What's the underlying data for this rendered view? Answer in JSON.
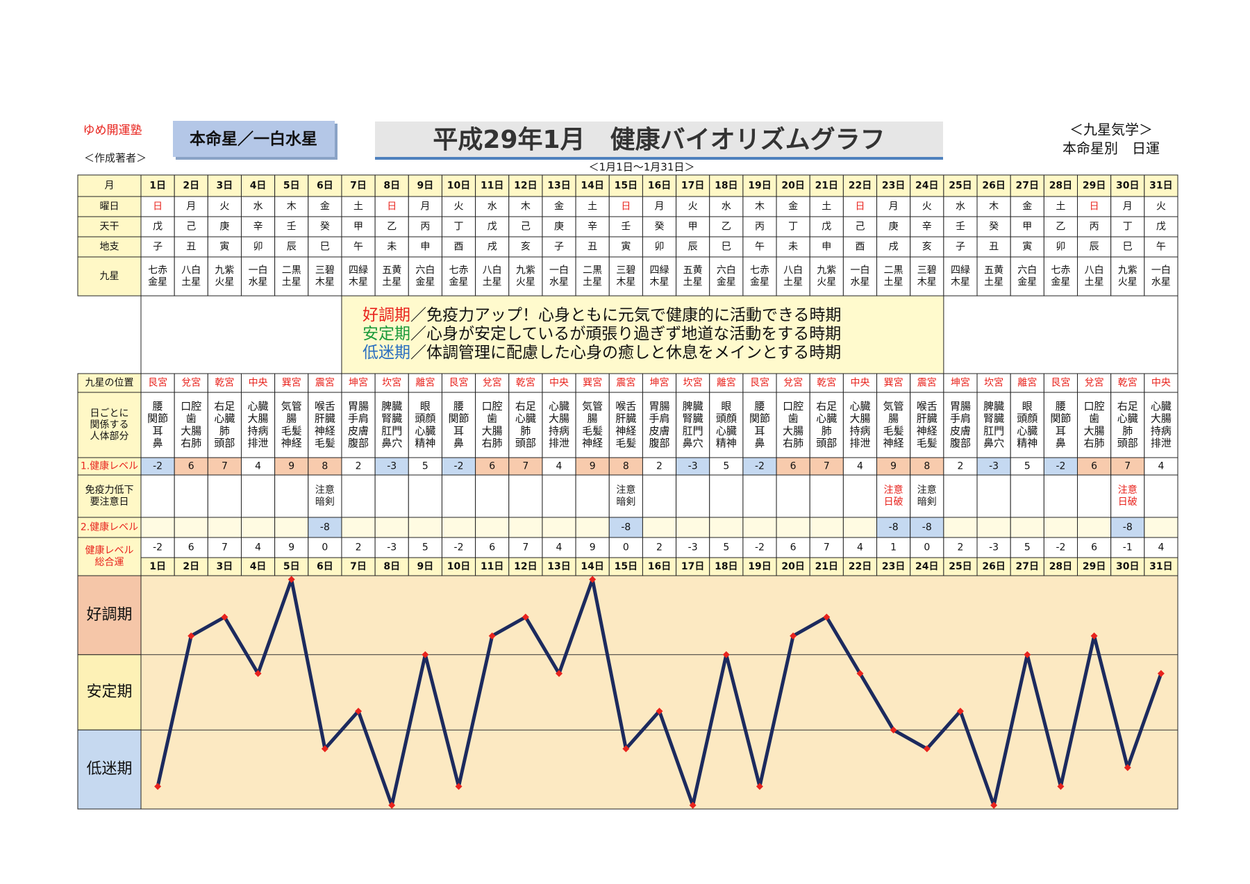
{
  "header": {
    "brand": "ゆめ開運塾",
    "author": "＜作成著者＞",
    "star": "本命星／一白水星",
    "title": "平成29年1月　健康バイオリズムグラフ",
    "range": "＜1月1日～1月31日＞",
    "school": "＜九星気学＞",
    "subtitle": "本命星別　日運"
  },
  "row_labels": {
    "day": [
      "月"
    ],
    "weekday": [
      "曜日"
    ],
    "kan": [
      "天干"
    ],
    "shi": [
      "地支"
    ],
    "star": [
      "九星"
    ],
    "position": [
      "九星の位置"
    ],
    "body": [
      "日ごとに",
      "関係する",
      "人体部分"
    ],
    "level1": [
      "1.健康レベル"
    ],
    "caution": [
      "免疫力低下",
      "要注意日"
    ],
    "level2": [
      "2.健康レベル"
    ],
    "total": [
      "健康レベル",
      "総合運"
    ]
  },
  "legend": [
    {
      "term": "好調期",
      "text": "／免疫力アップ！心身ともに元気で健康的に活動できる時期",
      "color": "#e8231d"
    },
    {
      "term": "安定期",
      "text": "／心身が安定しているが頑張り過ぎず地道な活動をする時期",
      "color": "#1a9a3a"
    },
    {
      "term": "低迷期",
      "text": "／体調管理に配慮した心身の癒しと休息をメインとする時期",
      "color": "#2a6fc0"
    }
  ],
  "days": [
    {
      "day": "1日",
      "weekday": "日",
      "kan": "戊",
      "shi": "子",
      "star": [
        "七赤",
        "金星"
      ],
      "position": "艮宮",
      "body": [
        "腰",
        "関節",
        "耳",
        "鼻"
      ],
      "level1": -2,
      "caution": null,
      "level2": null,
      "total": -2
    },
    {
      "day": "2日",
      "weekday": "月",
      "kan": "己",
      "shi": "丑",
      "star": [
        "八白",
        "土星"
      ],
      "position": "兌宮",
      "body": [
        "口腔",
        "歯",
        "大腸",
        "右肺"
      ],
      "level1": 6,
      "caution": null,
      "level2": null,
      "total": 6
    },
    {
      "day": "3日",
      "weekday": "火",
      "kan": "庚",
      "shi": "寅",
      "star": [
        "九紫",
        "火星"
      ],
      "position": "乾宮",
      "body": [
        "右足",
        "心臓",
        "肺",
        "頭部"
      ],
      "level1": 7,
      "caution": null,
      "level2": null,
      "total": 7
    },
    {
      "day": "4日",
      "weekday": "水",
      "kan": "辛",
      "shi": "卯",
      "star": [
        "一白",
        "水星"
      ],
      "position": "中央",
      "body": [
        "心臓",
        "大腸",
        "持病",
        "排泄"
      ],
      "level1": 4,
      "caution": null,
      "level2": null,
      "total": 4
    },
    {
      "day": "5日",
      "weekday": "木",
      "kan": "壬",
      "shi": "辰",
      "star": [
        "二黒",
        "土星"
      ],
      "position": "巽宮",
      "body": [
        "気管",
        "腸",
        "毛髪",
        "神経"
      ],
      "level1": 9,
      "caution": null,
      "level2": null,
      "total": 9
    },
    {
      "day": "6日",
      "weekday": "金",
      "kan": "癸",
      "shi": "巳",
      "star": [
        "三碧",
        "木星"
      ],
      "position": "震宮",
      "body": [
        "喉舌",
        "肝臓",
        "神経",
        "毛髪"
      ],
      "level1": 8,
      "caution": {
        "lines": [
          "注意",
          "暗剣"
        ],
        "color": "#222"
      },
      "level2": -8,
      "total": 0
    },
    {
      "day": "7日",
      "weekday": "土",
      "kan": "甲",
      "shi": "午",
      "star": [
        "四緑",
        "木星"
      ],
      "position": "坤宮",
      "body": [
        "胃腸",
        "手肩",
        "皮膚",
        "腹部"
      ],
      "level1": 2,
      "caution": null,
      "level2": null,
      "total": 2
    },
    {
      "day": "8日",
      "weekday": "日",
      "kan": "乙",
      "shi": "未",
      "star": [
        "五黄",
        "土星"
      ],
      "position": "坎宮",
      "body": [
        "脾臓",
        "腎臓",
        "肛門",
        "鼻穴"
      ],
      "level1": -3,
      "caution": null,
      "level2": null,
      "total": -3
    },
    {
      "day": "9日",
      "weekday": "月",
      "kan": "丙",
      "shi": "申",
      "star": [
        "六白",
        "金星"
      ],
      "position": "離宮",
      "body": [
        "眼",
        "頭顔",
        "心臓",
        "精神"
      ],
      "level1": 5,
      "caution": null,
      "level2": null,
      "total": 5
    },
    {
      "day": "10日",
      "weekday": "火",
      "kan": "丁",
      "shi": "酉",
      "star": [
        "七赤",
        "金星"
      ],
      "position": "艮宮",
      "body": [
        "腰",
        "関節",
        "耳",
        "鼻"
      ],
      "level1": -2,
      "caution": null,
      "level2": null,
      "total": -2
    },
    {
      "day": "11日",
      "weekday": "水",
      "kan": "戊",
      "shi": "戌",
      "star": [
        "八白",
        "土星"
      ],
      "position": "兌宮",
      "body": [
        "口腔",
        "歯",
        "大腸",
        "右肺"
      ],
      "level1": 6,
      "caution": null,
      "level2": null,
      "total": 6
    },
    {
      "day": "12日",
      "weekday": "木",
      "kan": "己",
      "shi": "亥",
      "star": [
        "九紫",
        "火星"
      ],
      "position": "乾宮",
      "body": [
        "右足",
        "心臓",
        "肺",
        "頭部"
      ],
      "level1": 7,
      "caution": null,
      "level2": null,
      "total": 7
    },
    {
      "day": "13日",
      "weekday": "金",
      "kan": "庚",
      "shi": "子",
      "star": [
        "一白",
        "水星"
      ],
      "position": "中央",
      "body": [
        "心臓",
        "大腸",
        "持病",
        "排泄"
      ],
      "level1": 4,
      "caution": null,
      "level2": null,
      "total": 4
    },
    {
      "day": "14日",
      "weekday": "土",
      "kan": "辛",
      "shi": "丑",
      "star": [
        "二黒",
        "土星"
      ],
      "position": "巽宮",
      "body": [
        "気管",
        "腸",
        "毛髪",
        "神経"
      ],
      "level1": 9,
      "caution": null,
      "level2": null,
      "total": 9
    },
    {
      "day": "15日",
      "weekday": "日",
      "kan": "壬",
      "shi": "寅",
      "star": [
        "三碧",
        "木星"
      ],
      "position": "震宮",
      "body": [
        "喉舌",
        "肝臓",
        "神経",
        "毛髪"
      ],
      "level1": 8,
      "caution": {
        "lines": [
          "注意",
          "暗剣"
        ],
        "color": "#222"
      },
      "level2": -8,
      "total": 0
    },
    {
      "day": "16日",
      "weekday": "月",
      "kan": "癸",
      "shi": "卯",
      "star": [
        "四緑",
        "木星"
      ],
      "position": "坤宮",
      "body": [
        "胃腸",
        "手肩",
        "皮膚",
        "腹部"
      ],
      "level1": 2,
      "caution": null,
      "level2": null,
      "total": 2
    },
    {
      "day": "17日",
      "weekday": "火",
      "kan": "甲",
      "shi": "辰",
      "star": [
        "五黄",
        "土星"
      ],
      "position": "坎宮",
      "body": [
        "脾臓",
        "腎臓",
        "肛門",
        "鼻穴"
      ],
      "level1": -3,
      "caution": null,
      "level2": null,
      "total": -3
    },
    {
      "day": "18日",
      "weekday": "水",
      "kan": "乙",
      "shi": "巳",
      "star": [
        "六白",
        "金星"
      ],
      "position": "離宮",
      "body": [
        "眼",
        "頭顔",
        "心臓",
        "精神"
      ],
      "level1": 5,
      "caution": null,
      "level2": null,
      "total": 5
    },
    {
      "day": "19日",
      "weekday": "木",
      "kan": "丙",
      "shi": "午",
      "star": [
        "七赤",
        "金星"
      ],
      "position": "艮宮",
      "body": [
        "腰",
        "関節",
        "耳",
        "鼻"
      ],
      "level1": -2,
      "caution": null,
      "level2": null,
      "total": -2
    },
    {
      "day": "20日",
      "weekday": "金",
      "kan": "丁",
      "shi": "未",
      "star": [
        "八白",
        "土星"
      ],
      "position": "兌宮",
      "body": [
        "口腔",
        "歯",
        "大腸",
        "右肺"
      ],
      "level1": 6,
      "caution": null,
      "level2": null,
      "total": 6
    },
    {
      "day": "21日",
      "weekday": "土",
      "kan": "戊",
      "shi": "申",
      "star": [
        "九紫",
        "火星"
      ],
      "position": "乾宮",
      "body": [
        "右足",
        "心臓",
        "肺",
        "頭部"
      ],
      "level1": 7,
      "caution": null,
      "level2": null,
      "total": 7
    },
    {
      "day": "22日",
      "weekday": "日",
      "kan": "己",
      "shi": "酉",
      "star": [
        "一白",
        "水星"
      ],
      "position": "中央",
      "body": [
        "心臓",
        "大腸",
        "持病",
        "排泄"
      ],
      "level1": 4,
      "caution": null,
      "level2": null,
      "total": 4
    },
    {
      "day": "23日",
      "weekday": "月",
      "kan": "庚",
      "shi": "戌",
      "star": [
        "二黒",
        "土星"
      ],
      "position": "巽宮",
      "body": [
        "気管",
        "腸",
        "毛髪",
        "神経"
      ],
      "level1": 9,
      "caution": {
        "lines": [
          "注意",
          "日破"
        ],
        "color": "#e8231d"
      },
      "level2": -8,
      "total": 1
    },
    {
      "day": "24日",
      "weekday": "火",
      "kan": "辛",
      "shi": "亥",
      "star": [
        "三碧",
        "木星"
      ],
      "position": "震宮",
      "body": [
        "喉舌",
        "肝臓",
        "神経",
        "毛髪"
      ],
      "level1": 8,
      "caution": {
        "lines": [
          "注意",
          "暗剣"
        ],
        "color": "#222"
      },
      "level2": -8,
      "total": 0
    },
    {
      "day": "25日",
      "weekday": "水",
      "kan": "壬",
      "shi": "子",
      "star": [
        "四緑",
        "木星"
      ],
      "position": "坤宮",
      "body": [
        "胃腸",
        "手肩",
        "皮膚",
        "腹部"
      ],
      "level1": 2,
      "caution": null,
      "level2": null,
      "total": 2
    },
    {
      "day": "26日",
      "weekday": "木",
      "kan": "癸",
      "shi": "丑",
      "star": [
        "五黄",
        "土星"
      ],
      "position": "坎宮",
      "body": [
        "脾臓",
        "腎臓",
        "肛門",
        "鼻穴"
      ],
      "level1": -3,
      "caution": null,
      "level2": null,
      "total": -3
    },
    {
      "day": "27日",
      "weekday": "金",
      "kan": "甲",
      "shi": "寅",
      "star": [
        "六白",
        "金星"
      ],
      "position": "離宮",
      "body": [
        "眼",
        "頭顔",
        "心臓",
        "精神"
      ],
      "level1": 5,
      "caution": null,
      "level2": null,
      "total": 5
    },
    {
      "day": "28日",
      "weekday": "土",
      "kan": "乙",
      "shi": "卯",
      "star": [
        "七赤",
        "金星"
      ],
      "position": "艮宮",
      "body": [
        "腰",
        "関節",
        "耳",
        "鼻"
      ],
      "level1": -2,
      "caution": null,
      "level2": null,
      "total": -2
    },
    {
      "day": "29日",
      "weekday": "日",
      "kan": "丙",
      "shi": "辰",
      "star": [
        "八白",
        "土星"
      ],
      "position": "兌宮",
      "body": [
        "口腔",
        "歯",
        "大腸",
        "右肺"
      ],
      "level1": 6,
      "caution": null,
      "level2": null,
      "total": 6
    },
    {
      "day": "30日",
      "weekday": "月",
      "kan": "丁",
      "shi": "巳",
      "star": [
        "九紫",
        "火星"
      ],
      "position": "乾宮",
      "body": [
        "右足",
        "心臓",
        "肺",
        "頭部"
      ],
      "level1": 7,
      "caution": {
        "lines": [
          "注意",
          "日破"
        ],
        "color": "#e8231d"
      },
      "level2": -8,
      "total": -1
    },
    {
      "day": "31日",
      "weekday": "火",
      "kan": "戊",
      "shi": "午",
      "star": [
        "一白",
        "水星"
      ],
      "position": "中央",
      "body": [
        "心臓",
        "大腸",
        "持病",
        "排泄"
      ],
      "level1": 4,
      "caution": null,
      "level2": null,
      "total": 4
    }
  ],
  "chart": {
    "ylim": [
      -3.2,
      9.2
    ],
    "yticks": [
      1,
      5
    ],
    "bands": [
      {
        "label": "好調期",
        "color": "#f5c6a8"
      },
      {
        "label": "安定期",
        "color": "#fdf1b6"
      },
      {
        "label": "低迷期",
        "color": "#c6d9f0"
      }
    ],
    "line_color": "#1c2a5e",
    "marker_color": "#e8231d",
    "background": "#fce9c2"
  }
}
